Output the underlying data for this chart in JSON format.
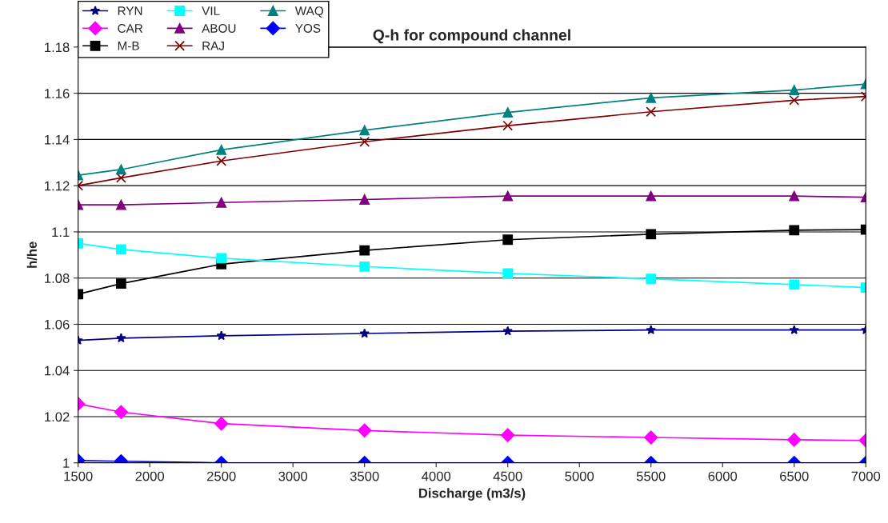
{
  "chart_data": {
    "type": "line",
    "title": "Q-h for compound channel",
    "xlabel": "Discharge (m3/s)",
    "ylabel": "h/he",
    "x": [
      1500,
      1800,
      2500,
      3500,
      4500,
      5500,
      6500,
      7000
    ],
    "xlim": [
      1500,
      7000
    ],
    "xticks": [
      1500,
      2000,
      2500,
      3000,
      3500,
      4000,
      4500,
      5000,
      5500,
      6000,
      6500,
      7000
    ],
    "ylim": [
      1,
      1.18
    ],
    "yticks": [
      {
        "value": 1,
        "label": "1"
      },
      1.02,
      1.04,
      1.06,
      1.08,
      {
        "value": 1.1,
        "label": "1.1"
      },
      1.12,
      1.14,
      1.16,
      1.18
    ],
    "grid": "y",
    "legend": "top left",
    "series": [
      {
        "name": "RYN",
        "color": "#000080",
        "marker": "star",
        "values": [
          1.053,
          1.054,
          1.055,
          1.056,
          1.057,
          1.0575,
          1.0575,
          1.0575
        ]
      },
      {
        "name": "CAR",
        "color": "#ff00ff",
        "marker": "diamond",
        "values": [
          1.0255,
          1.022,
          1.017,
          1.014,
          1.012,
          1.011,
          1.01,
          1.0097
        ]
      },
      {
        "name": "M-B",
        "color": "#000000",
        "marker": "square",
        "values": [
          1.073,
          1.0776,
          1.086,
          1.092,
          1.0966,
          1.099,
          1.1007,
          1.101
        ]
      },
      {
        "name": "VIL",
        "color": "#00ffff",
        "marker": "square",
        "values": [
          1.095,
          1.0924,
          1.0886,
          1.085,
          1.082,
          1.0797,
          1.0772,
          1.0759
        ]
      },
      {
        "name": "ABOU",
        "color": "#800080",
        "marker": "triangle",
        "values": [
          1.1117,
          1.1117,
          1.1127,
          1.114,
          1.1155,
          1.1155,
          1.1155,
          1.115
        ]
      },
      {
        "name": "RAJ",
        "color": "#800000",
        "marker": "cross",
        "values": [
          1.12,
          1.1234,
          1.1307,
          1.139,
          1.146,
          1.152,
          1.157,
          1.1586
        ]
      },
      {
        "name": "WAQ",
        "color": "#008080",
        "marker": "triangle",
        "values": [
          1.1245,
          1.127,
          1.1355,
          1.144,
          1.1517,
          1.158,
          1.1614,
          1.164
        ]
      },
      {
        "name": "YOS",
        "color": "#0000ff",
        "marker": "diamond",
        "values": [
          1.001,
          1.0007,
          1.0,
          1.0,
          1.0,
          1.0,
          1.0,
          1.0
        ]
      }
    ]
  }
}
